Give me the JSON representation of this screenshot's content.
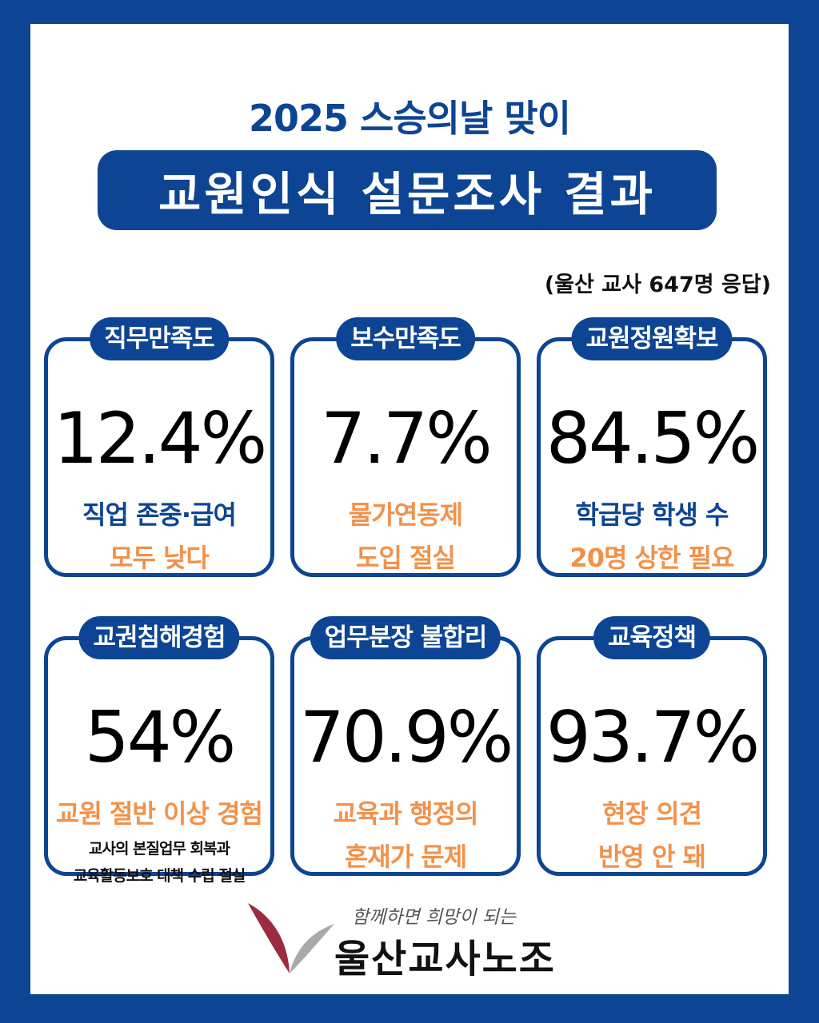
{
  "header": {
    "headline": "2025 스승의날 맞이",
    "title": "교원인식 설문조사 결과",
    "sample": "(울산 교사 647명 응답)"
  },
  "cards": [
    {
      "label": "직무만족도",
      "value": "12.4%",
      "lines": [
        {
          "text": "직업 존중·급여",
          "style": "blue"
        },
        {
          "text": "모두 낮다",
          "style": "orange"
        }
      ]
    },
    {
      "label": "보수만족도",
      "value": "7.7%",
      "lines": [
        {
          "text": "물가연동제",
          "style": "orange"
        },
        {
          "text": "도입 절실",
          "style": "orange"
        }
      ]
    },
    {
      "label": "교원정원확보",
      "value": "84.5%",
      "lines": [
        {
          "text": "학급당 학생 수",
          "style": "blue"
        },
        {
          "text": "20명 상한 필요",
          "style": "orange"
        }
      ]
    },
    {
      "label": "교권침해경험",
      "value": "54%",
      "lines": [
        {
          "text": "교원 절반 이상 경험",
          "style": "orange"
        },
        {
          "text": "교사의 본질업무 회복과",
          "style": "small"
        },
        {
          "text": "교육활동보호 대책 수립 절실",
          "style": "small"
        }
      ]
    },
    {
      "label": "업무분장 불합리",
      "value": "70.9%",
      "lines": [
        {
          "text": "교육과 행정의",
          "style": "orange"
        },
        {
          "text": "혼재가 문제",
          "style": "orange"
        }
      ]
    },
    {
      "label": "교육정책",
      "value": "93.7%",
      "lines": [
        {
          "text": "현장 의견",
          "style": "orange"
        },
        {
          "text": "반영 안 돼",
          "style": "orange"
        }
      ]
    }
  ],
  "footer": {
    "tagline": "함께하면 희망이 되는",
    "org_name": "울산교사노조",
    "logo_icon": "leaf-logo-icon"
  },
  "colors": {
    "navy": "#0d4594",
    "orange": "#f2914a",
    "logo_red": "#9b2c3f",
    "logo_gray": "#a9a9a9"
  }
}
